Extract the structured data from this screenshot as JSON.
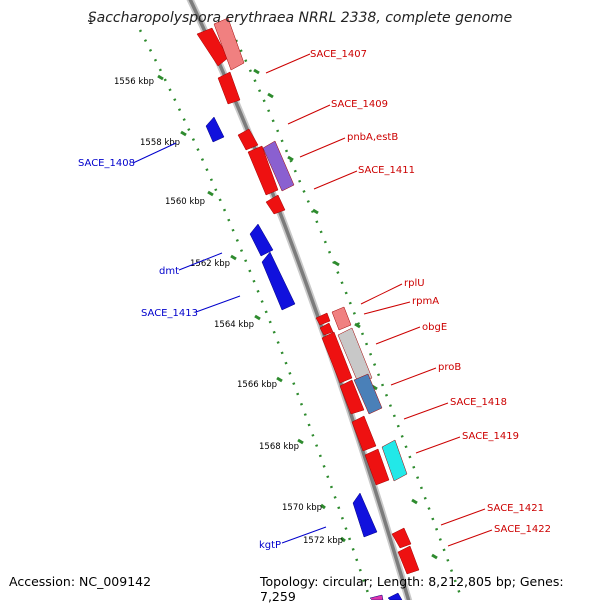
{
  "title": "Saccharopolyspora erythraea NRRL 2338, complete genome",
  "start_tick": "1",
  "accession": "Accession: NC_009142",
  "summary": "Topology: circular; Length: 8,212,805 bp; Genes: 7,259",
  "kbp_ticks": [
    "1556 kbp",
    "1558 kbp",
    "1560 kbp",
    "1562 kbp",
    "1564 kbp",
    "1566 kbp",
    "1568 kbp",
    "1570 kbp",
    "1572 kbp"
  ],
  "forward_labels": [
    "SACE_1407",
    "SACE_1409",
    "pnbA,estB",
    "SACE_1411",
    "rplU",
    "rpmA",
    "obgE",
    "proB",
    "SACE_1418",
    "SACE_1419",
    "SACE_1421",
    "SACE_1422"
  ],
  "reverse_labels": [
    "SACE_1408",
    "dmt",
    "SACE_1413",
    "kgtP"
  ],
  "colors": {
    "forward_label": "#cc0000",
    "reverse_label": "#0000cc",
    "forward_gene": "#ee1111",
    "reverse_gene": "#1111dd",
    "tick_marks": "#228b22",
    "backbone": "#808080"
  }
}
